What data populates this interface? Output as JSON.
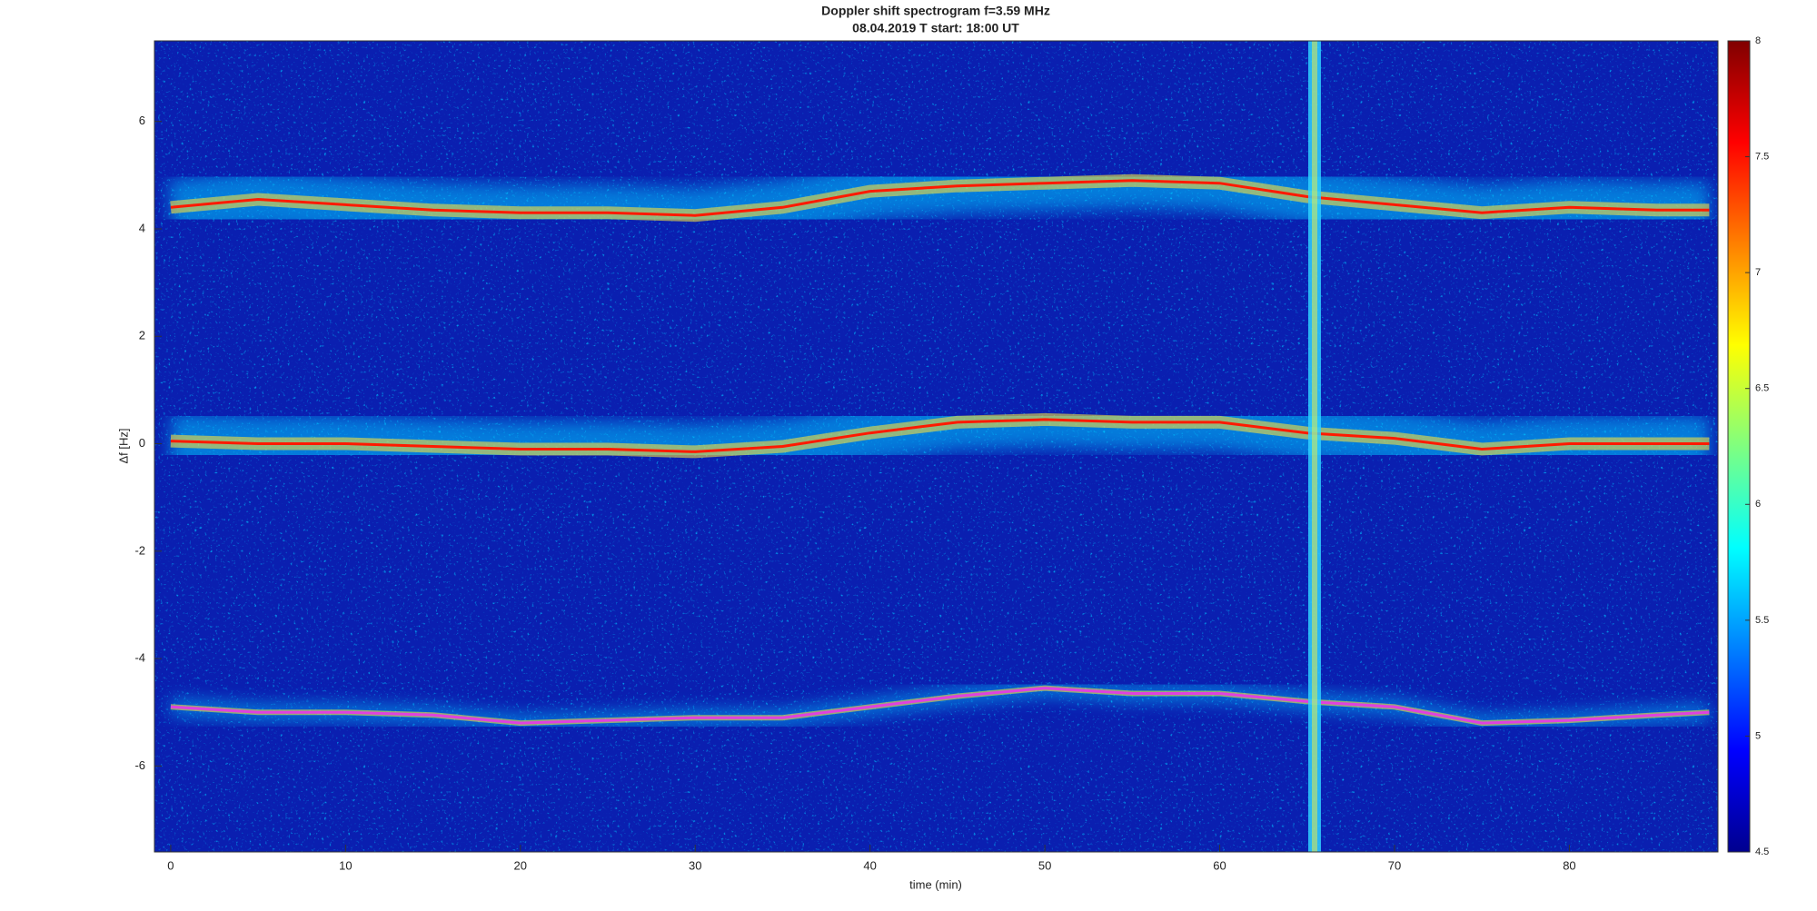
{
  "chart_data": {
    "type": "spectrogram",
    "title": "Doppler shift spectrogram f=3.59 MHz",
    "subtitle": "08.04.2019    T start: 18:00 UT",
    "x_label": "time (min)",
    "y_label": "Δf [Hz]",
    "x": [
      0,
      5,
      10,
      15,
      20,
      25,
      30,
      35,
      40,
      45,
      50,
      55,
      60,
      65,
      70,
      75,
      80,
      85,
      88
    ],
    "series": [
      {
        "color": "#ff1a00",
        "values": [
          4.4,
          4.55,
          4.45,
          4.35,
          4.3,
          4.3,
          4.25,
          4.4,
          4.7,
          4.8,
          4.85,
          4.9,
          4.85,
          4.6,
          4.45,
          4.3,
          4.4,
          4.35,
          4.35
        ]
      },
      {
        "color": "#ff1a00",
        "values": [
          0.05,
          0,
          0,
          -0.05,
          -0.1,
          -0.1,
          -0.15,
          -0.05,
          0.2,
          0.4,
          0.45,
          0.4,
          0.4,
          0.2,
          0.1,
          -0.1,
          0,
          0,
          0
        ]
      },
      {
        "color": "#e040e0",
        "values": [
          -4.9,
          -5,
          -5,
          -5.05,
          -5.2,
          -5.15,
          -5.1,
          -5.1,
          -4.9,
          -4.7,
          -4.55,
          -4.65,
          -4.65,
          -4.8,
          -4.9,
          -5.2,
          -5.15,
          -5.05,
          -5
        ]
      }
    ],
    "xlim": [
      -0.93,
      88.5
    ],
    "ylim": [
      -7.6,
      7.5
    ],
    "xticks": [
      0,
      10,
      20,
      30,
      40,
      50,
      60,
      70,
      80
    ],
    "yticks": [
      -6,
      -4,
      -2,
      0,
      2,
      4,
      6
    ],
    "clim": [
      4.5,
      8
    ],
    "cticks": [
      4.5,
      5,
      5.5,
      6,
      6.5,
      7,
      7.5,
      8
    ],
    "grid": false
  }
}
